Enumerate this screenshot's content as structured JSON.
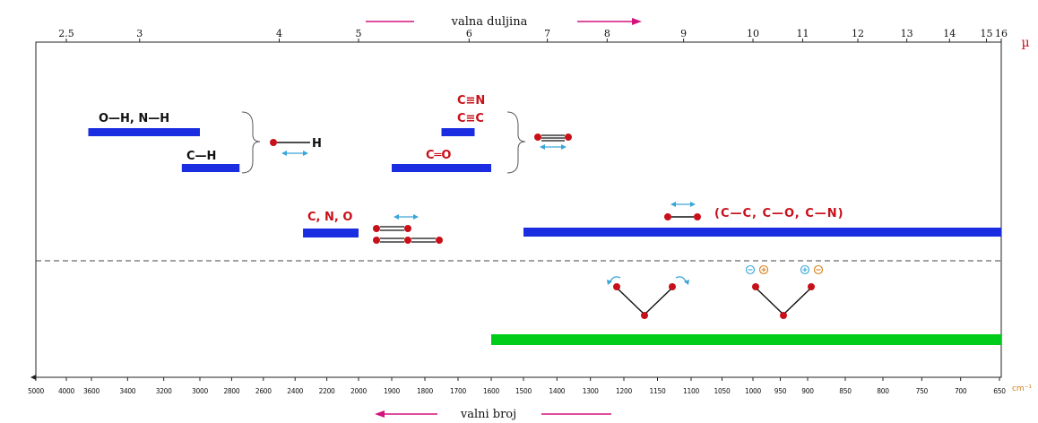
{
  "top_axis": {
    "title": "valna duljina",
    "unit": "µ",
    "ticks": [
      "2.5",
      "3",
      "4",
      "5",
      "6",
      "7",
      "8",
      "9",
      "10",
      "11",
      "12",
      "13",
      "14",
      "15",
      "16"
    ],
    "tick_values": [
      2.5,
      3,
      4,
      5,
      6,
      7,
      8,
      9,
      10,
      11,
      12,
      13,
      14,
      15,
      16
    ]
  },
  "bottom_axis": {
    "title": "valni broj",
    "unit": "cm⁻¹",
    "ticks": [
      "5000",
      "4000",
      "3600",
      "3400",
      "3200",
      "3000",
      "2800",
      "2600",
      "2400",
      "2200",
      "2000",
      "1900",
      "1800",
      "1700",
      "1600",
      "1500",
      "1400",
      "1300",
      "1200",
      "1150",
      "1100",
      "1050",
      "1000",
      "950",
      "900",
      "850",
      "800",
      "750",
      "700",
      "650"
    ],
    "tick_values": [
      5000,
      4000,
      3600,
      3400,
      3200,
      3000,
      2800,
      2600,
      2400,
      2200,
      2000,
      1900,
      1800,
      1700,
      1600,
      1500,
      1400,
      1300,
      1200,
      1150,
      1100,
      1050,
      1000,
      950,
      900,
      850,
      800,
      750,
      700,
      650
    ]
  },
  "labels": {
    "oh_nh": "O—H, N—H",
    "ch": "C—H",
    "cn_triple": "C≡N",
    "cc_triple": "C≡C",
    "co_double": "C═O",
    "cno": "C, N, O",
    "single_bonds": "(C—C, C—O, C—N)",
    "h_atom": "H"
  },
  "colors": {
    "blue_bar": "#1a2de0",
    "green_bar": "#00cc1a",
    "atom": "#c8101a",
    "arrow_cyan": "#3aa6d8",
    "arrow_magenta": "#d4127e",
    "charge_minus": "#3aa6d8",
    "charge_plus": "#d8801a"
  },
  "chart_data": {
    "type": "bar",
    "x_unit": "cm-1",
    "series": [
      {
        "name": "O—H, N—H",
        "x_range": [
          3650,
          3000
        ]
      },
      {
        "name": "C—H",
        "x_range": [
          3100,
          2750
        ]
      },
      {
        "name": "C≡N, C≡C",
        "x_range": [
          1750,
          1650
        ]
      },
      {
        "name": "C═O",
        "x_range": [
          1900,
          1600
        ]
      },
      {
        "name": "C, N, O",
        "x_range": [
          2350,
          2000
        ]
      },
      {
        "name": "(C—C, C—O, C—N)",
        "x_range": [
          1500,
          630
        ]
      },
      {
        "name": "",
        "x_range": [
          1600,
          630
        ]
      }
    ]
  }
}
